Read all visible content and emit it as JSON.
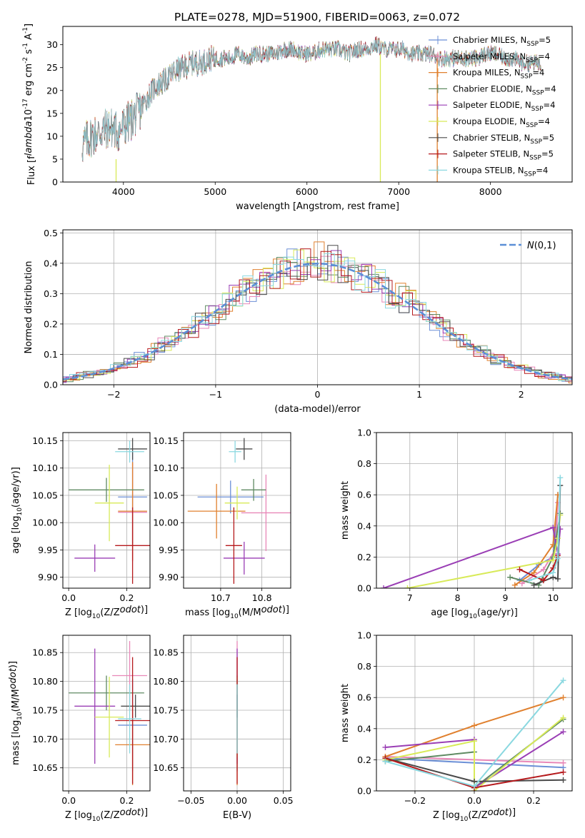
{
  "figure": {
    "title": "PLATE=0278, MJD=51900, FIBERID=0063, z=0.072"
  },
  "chart_data": [
    {
      "id": "spectrum",
      "type": "line",
      "title": "PLATE=0278, MJD=51900, FIBERID=0063, z=0.072",
      "xlabel": "wavelength [Angstrom, rest frame]",
      "ylabel": "Flux [f$_\\lambda$10$^{-17}$ erg cm$^{-2}$ s$^{-1}$ A$^{-1}$]",
      "xlim": [
        3340,
        8890
      ],
      "ylim": [
        0,
        34
      ],
      "xticks": [
        4000,
        5000,
        6000,
        7000,
        8000
      ],
      "yticks": [
        0,
        5,
        10,
        15,
        20,
        25,
        30
      ],
      "grid": false,
      "legend_position": "top-right",
      "series": [
        {
          "name": "Chabrier MILES, N$_{SSP}$=5",
          "color": "#6b8fd6"
        },
        {
          "name": "Salpeter MILES, N$_{SSP}$=4",
          "color": "#e887b8"
        },
        {
          "name": "Kroupa MILES, N$_{SSP}$=4",
          "color": "#e0802e"
        },
        {
          "name": "Chabrier ELODIE, N$_{SSP}$=4",
          "color": "#5f8a62"
        },
        {
          "name": "Salpeter ELODIE, N$_{SSP}$=4",
          "color": "#9a3eb5"
        },
        {
          "name": "Kroupa ELODIE, N$_{SSP}$=4",
          "color": "#d8ea58"
        },
        {
          "name": "Chabrier STELIB, N$_{SSP}$=5",
          "color": "#4a4a4a"
        },
        {
          "name": "Salpeter STELIB, N$_{SSP}$=5",
          "color": "#b5191c"
        },
        {
          "name": "Kroupa STELIB, N$_{SSP}$=4",
          "color": "#8ad8e0"
        }
      ],
      "spectrum_envelope": {
        "x": [
          3550,
          3650,
          3750,
          3850,
          3950,
          4050,
          4150,
          4250,
          4350,
          4450,
          4550,
          4650,
          4750,
          4850,
          4950,
          5050,
          5150,
          5250,
          5350,
          5450,
          5550,
          5650,
          5750,
          5850,
          5950,
          6050,
          6150,
          6250,
          6350,
          6450,
          6550,
          6650,
          6750,
          6850,
          6950,
          7050,
          7150,
          7250,
          7350,
          7450,
          7550,
          7650,
          7750,
          7850,
          7950,
          8050,
          8150,
          8250,
          8350,
          8450,
          8550
        ],
        "y": [
          8,
          10,
          11,
          12,
          11,
          13,
          15,
          18,
          21,
          22,
          24,
          25,
          26,
          26,
          27,
          27,
          27,
          28,
          27,
          28,
          28,
          28,
          29,
          29,
          28,
          28,
          29,
          29,
          29,
          28,
          29,
          29,
          30,
          29,
          29,
          29,
          28,
          28,
          28,
          27,
          27,
          27,
          27,
          27,
          28,
          28,
          27,
          27,
          26,
          26,
          26
        ]
      },
      "spikes": [
        {
          "x": 3920,
          "ymin": 0,
          "ymax": 5,
          "color": "#d8ea58"
        },
        {
          "x": 6800,
          "ymin": 0,
          "ymax": 28,
          "color": "#d8ea58"
        },
        {
          "x": 7420,
          "ymin": 0,
          "ymax": 27,
          "color": "#e0802e"
        }
      ]
    },
    {
      "id": "residuals",
      "type": "step",
      "xlabel": "(data-model)/error",
      "ylabel": "Normed distribution",
      "xlim": [
        -2.5,
        2.5
      ],
      "ylim": [
        0,
        0.51
      ],
      "xticks": [
        -2,
        -1,
        0,
        1,
        2
      ],
      "yticks": [
        0.0,
        0.1,
        0.2,
        0.3,
        0.4,
        0.5
      ],
      "grid": true,
      "legend_position": "top-right",
      "legend": [
        "$\\mathcal{N}(0,1)$"
      ],
      "normal_curve": {
        "mean": 0,
        "sigma": 1,
        "color": "#5b8fd6"
      }
    },
    {
      "id": "age_vs_Z",
      "type": "scatter",
      "xlabel": "Z [log$_{10}$(Z/Z$_\\odot$)]",
      "ylabel": "age  [log$_{10}$(age/yr)]",
      "xlim": [
        -0.02,
        0.28
      ],
      "ylim": [
        9.88,
        10.165
      ],
      "xticks": [
        0.0,
        0.2
      ],
      "yticks": [
        9.9,
        9.95,
        10.0,
        10.05,
        10.1,
        10.15
      ],
      "grid": true,
      "points": [
        {
          "x": 0.22,
          "y": 10.047,
          "xerr": 0.05,
          "yerr": 0.085,
          "color": "#6b8fd6"
        },
        {
          "x": 0.22,
          "y": 10.019,
          "xerr": 0.05,
          "yerr": 0.09,
          "color": "#e887b8"
        },
        {
          "x": 0.22,
          "y": 10.021,
          "xerr": 0.05,
          "yerr": 0.09,
          "color": "#e0802e"
        },
        {
          "x": 0.13,
          "y": 10.06,
          "xerr": 0.13,
          "yerr": 0.022,
          "color": "#5f8a62"
        },
        {
          "x": 0.09,
          "y": 9.935,
          "xerr": 0.07,
          "yerr": 0.025,
          "color": "#9a3eb5"
        },
        {
          "x": 0.14,
          "y": 10.036,
          "xerr": 0.05,
          "yerr": 0.07,
          "color": "#d8ea58"
        },
        {
          "x": 0.22,
          "y": 10.135,
          "xerr": 0.05,
          "yerr": 0.02,
          "color": "#4a4a4a"
        },
        {
          "x": 0.22,
          "y": 9.958,
          "xerr": 0.06,
          "yerr": 0.07,
          "color": "#b5191c"
        },
        {
          "x": 0.21,
          "y": 10.13,
          "xerr": 0.05,
          "yerr": 0.02,
          "color": "#8ad8e0"
        }
      ]
    },
    {
      "id": "age_vs_mass",
      "type": "scatter",
      "xlabel": "mass [log$_{10}$(M/M$_\\odot$)]",
      "ylabel": "",
      "xlim": [
        10.61,
        10.87
      ],
      "ylim": [
        9.88,
        10.165
      ],
      "xticks": [
        10.7,
        10.8
      ],
      "yticks": [
        9.9,
        9.95,
        10.0,
        10.05,
        10.1,
        10.15
      ],
      "grid": true,
      "points": [
        {
          "x": 10.724,
          "y": 10.047,
          "xerr": 0.08,
          "yerr": 0.03,
          "color": "#6b8fd6"
        },
        {
          "x": 10.81,
          "y": 10.018,
          "xerr": 0.06,
          "yerr": 0.07,
          "color": "#e887b8"
        },
        {
          "x": 10.69,
          "y": 10.021,
          "xerr": 0.07,
          "yerr": 0.05,
          "color": "#e0802e"
        },
        {
          "x": 10.78,
          "y": 10.06,
          "xerr": 0.03,
          "yerr": 0.02,
          "color": "#5f8a62"
        },
        {
          "x": 10.757,
          "y": 9.935,
          "xerr": 0.05,
          "yerr": 0.03,
          "color": "#9a3eb5"
        },
        {
          "x": 10.74,
          "y": 10.036,
          "xerr": 0.03,
          "yerr": 0.03,
          "color": "#d8ea58"
        },
        {
          "x": 10.757,
          "y": 10.135,
          "xerr": 0.02,
          "yerr": 0.02,
          "color": "#4a4a4a"
        },
        {
          "x": 10.732,
          "y": 9.958,
          "xerr": 0.02,
          "yerr": 0.07,
          "color": "#b5191c"
        },
        {
          "x": 10.735,
          "y": 10.13,
          "xerr": 0.015,
          "yerr": 0.02,
          "color": "#8ad8e0"
        }
      ]
    },
    {
      "id": "mass_weight_vs_age",
      "type": "line",
      "xlabel": "age  [log$_{10}$(age/yr)]",
      "ylabel": "mass weight",
      "xlim": [
        6.3,
        10.4
      ],
      "ylim": [
        0,
        1.0
      ],
      "xticks": [
        7,
        8,
        9,
        10
      ],
      "yticks": [
        0.0,
        0.2,
        0.4,
        0.6,
        0.8,
        1.0
      ],
      "grid": true,
      "series": [
        {
          "color": "#6b8fd6",
          "x": [
            9.3,
            9.7,
            10.0,
            10.1
          ],
          "y": [
            0.05,
            0.15,
            0.2,
            0.6
          ]
        },
        {
          "color": "#e887b8",
          "x": [
            9.35,
            9.8,
            10.05,
            10.1
          ],
          "y": [
            0.03,
            0.12,
            0.25,
            0.55
          ]
        },
        {
          "color": "#e0802e",
          "x": [
            9.2,
            9.6,
            10.0,
            10.1
          ],
          "y": [
            0.02,
            0.1,
            0.28,
            0.6
          ]
        },
        {
          "color": "#5f8a62",
          "x": [
            9.1,
            9.7,
            10.0,
            10.15
          ],
          "y": [
            0.07,
            0.02,
            0.2,
            0.48
          ]
        },
        {
          "color": "#9a3eb5",
          "x": [
            6.45,
            10.0,
            10.1,
            10.15
          ],
          "y": [
            0.0,
            0.39,
            0.22,
            0.38
          ]
        },
        {
          "color": "#d8ea58",
          "x": [
            6.95,
            10.0,
            10.1,
            10.15
          ],
          "y": [
            0.0,
            0.18,
            0.32,
            0.47
          ]
        },
        {
          "color": "#4a4a4a",
          "x": [
            9.6,
            10.0,
            10.1,
            10.15
          ],
          "y": [
            0.02,
            0.07,
            0.06,
            0.66
          ]
        },
        {
          "color": "#b5191c",
          "x": [
            9.3,
            9.8,
            10.0,
            10.1
          ],
          "y": [
            0.12,
            0.05,
            0.13,
            0.21
          ]
        },
        {
          "color": "#8ad8e0",
          "x": [
            9.5,
            10.0,
            10.1,
            10.15
          ],
          "y": [
            0.05,
            0.1,
            0.19,
            0.71
          ]
        }
      ]
    },
    {
      "id": "mass_vs_Z",
      "type": "scatter",
      "xlabel": "Z [log$_{10}$(Z/Z$_\\odot$)]",
      "ylabel": "mass [log$_{10}$(M/M$_\\odot$)]",
      "xlim": [
        -0.02,
        0.28
      ],
      "ylim": [
        10.61,
        10.88
      ],
      "xticks": [
        0.0,
        0.2
      ],
      "yticks": [
        10.65,
        10.7,
        10.75,
        10.8,
        10.85
      ],
      "grid": true,
      "points": [
        {
          "x": 0.22,
          "y": 10.724,
          "xerr": 0.05,
          "yerr": 0.08,
          "color": "#6b8fd6"
        },
        {
          "x": 0.21,
          "y": 10.81,
          "xerr": 0.06,
          "yerr": 0.06,
          "color": "#e887b8"
        },
        {
          "x": 0.22,
          "y": 10.69,
          "xerr": 0.06,
          "yerr": 0.07,
          "color": "#e0802e"
        },
        {
          "x": 0.13,
          "y": 10.78,
          "xerr": 0.13,
          "yerr": 0.03,
          "color": "#5f8a62"
        },
        {
          "x": 0.09,
          "y": 10.757,
          "xerr": 0.07,
          "yerr": 0.1,
          "color": "#9a3eb5"
        },
        {
          "x": 0.14,
          "y": 10.738,
          "xerr": 0.05,
          "yerr": 0.07,
          "color": "#d8ea58"
        },
        {
          "x": 0.23,
          "y": 10.757,
          "xerr": 0.05,
          "yerr": 0.02,
          "color": "#4a4a4a"
        },
        {
          "x": 0.22,
          "y": 10.732,
          "xerr": 0.06,
          "yerr": 0.11,
          "color": "#b5191c"
        },
        {
          "x": 0.21,
          "y": 10.735,
          "xerr": 0.04,
          "yerr": 0.06,
          "color": "#8ad8e0"
        }
      ]
    },
    {
      "id": "mass_vs_EBV",
      "type": "scatter",
      "xlabel": "E(B-V)",
      "ylabel": "",
      "xlim": [
        -0.058,
        0.058
      ],
      "ylim": [
        10.61,
        10.88
      ],
      "xticks": [
        -0.05,
        0.0,
        0.05
      ],
      "yticks": [
        10.65,
        10.7,
        10.75,
        10.8,
        10.85
      ],
      "grid": true,
      "points": [
        {
          "x": 0.0,
          "y": 10.724,
          "xerr": 0,
          "yerr": 0.08,
          "color": "#6b8fd6"
        },
        {
          "x": 0.0,
          "y": 10.81,
          "xerr": 0,
          "yerr": 0.06,
          "color": "#e887b8"
        },
        {
          "x": 0.0,
          "y": 10.69,
          "xerr": 0,
          "yerr": 0.07,
          "color": "#e0802e"
        },
        {
          "x": 0.0,
          "y": 10.78,
          "xerr": 0,
          "yerr": 0.03,
          "color": "#5f8a62"
        },
        {
          "x": 0.0,
          "y": 10.757,
          "xerr": 0,
          "yerr": 0.1,
          "color": "#9a3eb5"
        },
        {
          "x": 0.0,
          "y": 10.738,
          "xerr": 0,
          "yerr": 0.07,
          "color": "#d8ea58"
        },
        {
          "x": 0.0,
          "y": 10.757,
          "xerr": 0,
          "yerr": 0.02,
          "color": "#4a4a4a"
        },
        {
          "x": 0.0,
          "y": 10.732,
          "xerr": 0,
          "yerr": 0.11,
          "color": "#b5191c"
        },
        {
          "x": 0.0,
          "y": 10.735,
          "xerr": 0,
          "yerr": 0.06,
          "color": "#8ad8e0"
        }
      ]
    },
    {
      "id": "mass_weight_vs_Z",
      "type": "line",
      "xlabel": "Z [log$_{10}$(Z/Z$_\\odot$)]",
      "ylabel": "mass weight",
      "xlim": [
        -0.33,
        0.33
      ],
      "ylim": [
        0,
        1.0
      ],
      "xticks": [
        -0.2,
        0.0,
        0.2
      ],
      "yticks": [
        0.0,
        0.2,
        0.4,
        0.6,
        0.8,
        1.0
      ],
      "grid": true,
      "series": [
        {
          "color": "#6b8fd6",
          "x": [
            -0.3,
            0.0,
            0.3
          ],
          "y": [
            0.21,
            0.18,
            0.15
          ]
        },
        {
          "color": "#e887b8",
          "x": [
            -0.3,
            0.0,
            0.3
          ],
          "y": [
            0.22,
            0.2,
            0.18
          ]
        },
        {
          "color": "#e0802e",
          "x": [
            -0.3,
            0.0,
            0.3
          ],
          "y": [
            0.22,
            0.42,
            0.6
          ]
        },
        {
          "color": "#5f8a62",
          "x": [
            -0.3,
            0.0,
            0.0,
            0.3
          ],
          "y": [
            0.19,
            0.25,
            0.02,
            0.46
          ]
        },
        {
          "color": "#9a3eb5",
          "x": [
            -0.3,
            0.0,
            0.0,
            0.3
          ],
          "y": [
            0.28,
            0.33,
            0.02,
            0.38
          ]
        },
        {
          "color": "#d8ea58",
          "x": [
            -0.3,
            0.0,
            0.0,
            0.3
          ],
          "y": [
            0.2,
            0.32,
            0.0,
            0.47
          ]
        },
        {
          "color": "#4a4a4a",
          "x": [
            -0.3,
            0.0,
            0.3
          ],
          "y": [
            0.21,
            0.06,
            0.07
          ]
        },
        {
          "color": "#b5191c",
          "x": [
            -0.3,
            0.0,
            0.3
          ],
          "y": [
            0.21,
            0.02,
            0.12
          ]
        },
        {
          "color": "#8ad8e0",
          "x": [
            -0.3,
            0.0,
            0.3
          ],
          "y": [
            0.19,
            0.03,
            0.71
          ]
        }
      ]
    }
  ]
}
